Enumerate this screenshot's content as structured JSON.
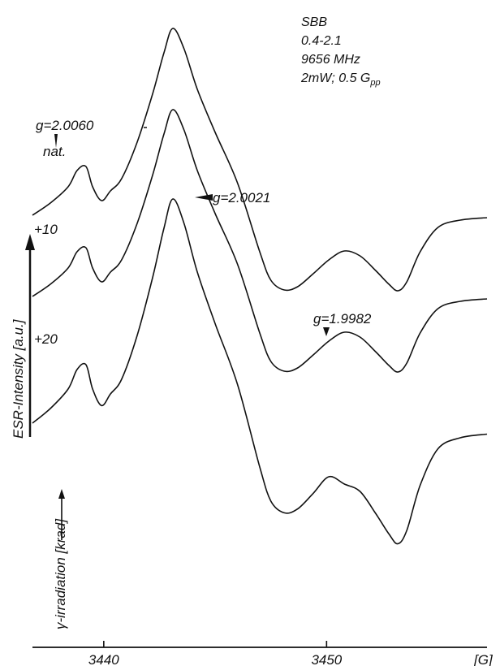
{
  "info": {
    "sample": "SBB",
    "range": "0.4-2.1",
    "frequency": "9656 MHz",
    "power_mod": "2mW; 0.5 G",
    "power_mod_sub": "pp"
  },
  "chart_data": {
    "type": "line",
    "title": "",
    "xlabel": "[G]",
    "ylabel": "ESR-Intensity [a.u.]",
    "secondary_label": "γ-irradiation [krad]",
    "x_ticks": [
      3440,
      3450
    ],
    "x_tick_labels": [
      "3440",
      "3450"
    ],
    "xlim": [
      3436.8,
      3457.2
    ],
    "grid": false,
    "legend": "none",
    "line_color": "#111111",
    "series": [
      {
        "name": "nat.",
        "offset": 0,
        "amplitude": 1.0,
        "dip2_scale": 1.0
      },
      {
        "name": "+10",
        "offset": 1.0,
        "amplitude": 1.0,
        "dip2_scale": 1.0
      },
      {
        "name": "+20",
        "offset": 2.5,
        "amplitude": 1.2,
        "dip2_scale": 1.25
      }
    ],
    "annotations": [
      {
        "text": "g=2.0060"
      },
      {
        "text": "g=2.0021"
      },
      {
        "text": "g=1.9982"
      }
    ]
  }
}
